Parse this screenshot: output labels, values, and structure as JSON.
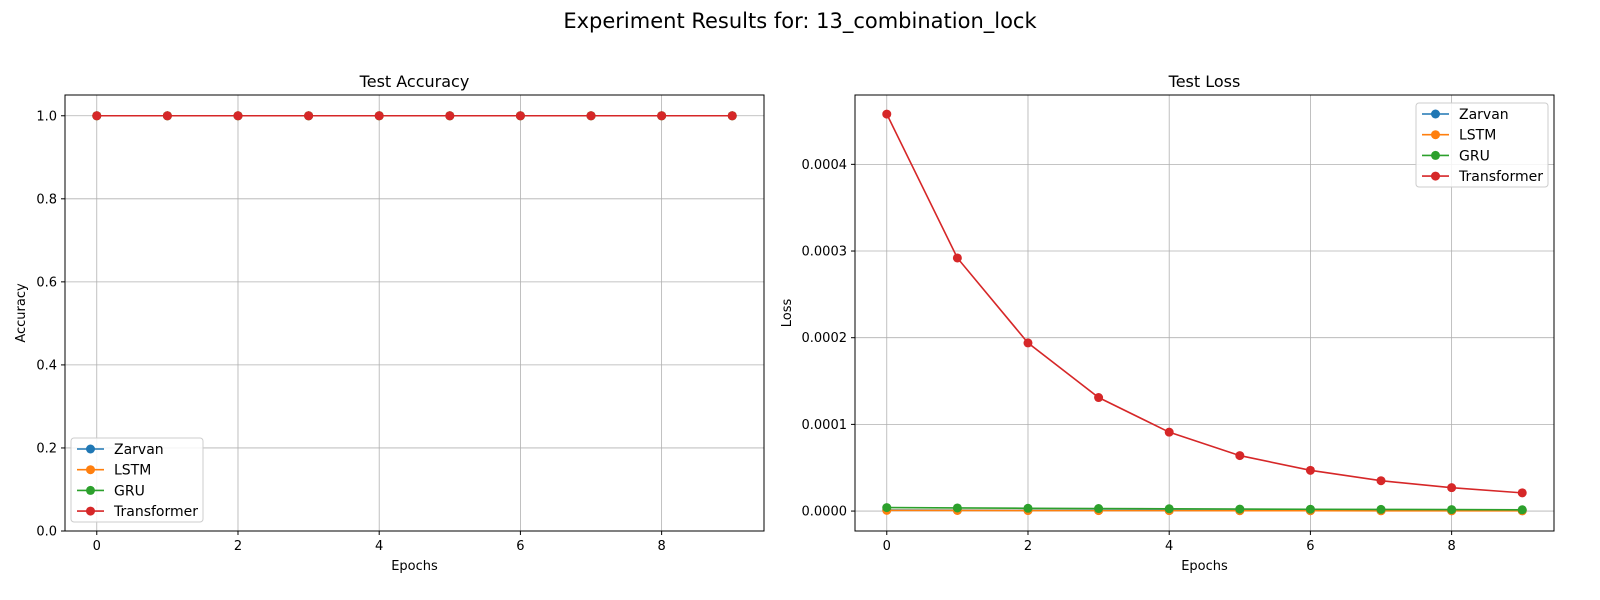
{
  "figure": {
    "suptitle": "Experiment Results for: 13_combination_lock"
  },
  "chart_data": [
    {
      "type": "line",
      "title": "Test Accuracy",
      "xlabel": "Epochs",
      "ylabel": "Accuracy",
      "x": [
        0,
        1,
        2,
        3,
        4,
        5,
        6,
        7,
        8,
        9
      ],
      "xlim": [
        -0.45,
        9.45
      ],
      "ylim": [
        0.0,
        1.05
      ],
      "xticks": [
        0,
        2,
        4,
        6,
        8
      ],
      "yticks": [
        0.0,
        0.2,
        0.4,
        0.6,
        0.8,
        1.0
      ],
      "ytick_labels": [
        "0.0",
        "0.2",
        "0.4",
        "0.6",
        "0.8",
        "1.0"
      ],
      "grid": true,
      "legend_position": "lower-left",
      "series": [
        {
          "name": "Zarvan",
          "color": "#1f77b4",
          "values": [
            1.0,
            1.0,
            1.0,
            1.0,
            1.0,
            1.0,
            1.0,
            1.0,
            1.0,
            1.0
          ]
        },
        {
          "name": "LSTM",
          "color": "#ff7f0e",
          "values": [
            1.0,
            1.0,
            1.0,
            1.0,
            1.0,
            1.0,
            1.0,
            1.0,
            1.0,
            1.0
          ]
        },
        {
          "name": "GRU",
          "color": "#2ca02c",
          "values": [
            1.0,
            1.0,
            1.0,
            1.0,
            1.0,
            1.0,
            1.0,
            1.0,
            1.0,
            1.0
          ]
        },
        {
          "name": "Transformer",
          "color": "#d62728",
          "values": [
            1.0,
            1.0,
            1.0,
            1.0,
            1.0,
            1.0,
            1.0,
            1.0,
            1.0,
            1.0
          ]
        }
      ]
    },
    {
      "type": "line",
      "title": "Test Loss",
      "xlabel": "Epochs",
      "ylabel": "Loss",
      "x": [
        0,
        1,
        2,
        3,
        4,
        5,
        6,
        7,
        8,
        9
      ],
      "xlim": [
        -0.45,
        9.45
      ],
      "ylim": [
        -2.3e-05,
        0.00048
      ],
      "xticks": [
        0,
        2,
        4,
        6,
        8
      ],
      "yticks": [
        0.0,
        0.0001,
        0.0002,
        0.0003,
        0.0004
      ],
      "ytick_labels": [
        "0.0000",
        "0.0001",
        "0.0002",
        "0.0003",
        "0.0004"
      ],
      "grid": true,
      "legend_position": "upper-right",
      "series": [
        {
          "name": "Zarvan",
          "color": "#1f77b4",
          "values": [
            1.2e-06,
            1e-06,
            9e-07,
            8e-07,
            7e-07,
            6e-07,
            5e-07,
            5e-07,
            4e-07,
            4e-07
          ]
        },
        {
          "name": "LSTM",
          "color": "#ff7f0e",
          "values": [
            8e-07,
            7e-07,
            6e-07,
            5e-07,
            5e-07,
            4e-07,
            4e-07,
            3e-07,
            3e-07,
            3e-07
          ]
        },
        {
          "name": "GRU",
          "color": "#2ca02c",
          "values": [
            4e-06,
            3.6e-06,
            3.2e-06,
            2.9e-06,
            2.6e-06,
            2.3e-06,
            2.1e-06,
            1.9e-06,
            1.7e-06,
            1.5e-06
          ]
        },
        {
          "name": "Transformer",
          "color": "#d62728",
          "values": [
            0.000458,
            0.000292,
            0.000194,
            0.000131,
            9.1e-05,
            6.4e-05,
            4.7e-05,
            3.5e-05,
            2.7e-05,
            2.1e-05
          ]
        }
      ]
    }
  ]
}
